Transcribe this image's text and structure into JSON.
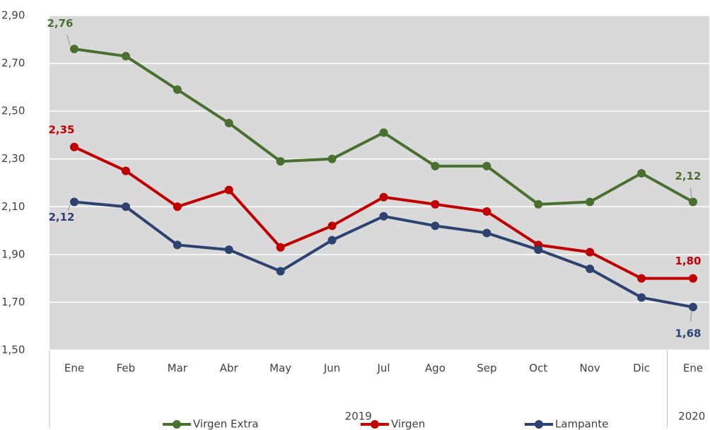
{
  "chart_data": {
    "type": "line",
    "categories": [
      "Ene",
      "Feb",
      "Mar",
      "Abr",
      "May",
      "Jun",
      "Jul",
      "Ago",
      "Sep",
      "Oct",
      "Nov",
      "Dic",
      "Ene"
    ],
    "x_groups": [
      {
        "label": "2019",
        "count": 12
      },
      {
        "label": "2020",
        "count": 1
      }
    ],
    "series": [
      {
        "name": "Virgen Extra",
        "color": "#4a7030",
        "values": [
          2.76,
          2.73,
          2.59,
          2.45,
          2.29,
          2.3,
          2.41,
          2.27,
          2.27,
          2.11,
          2.12,
          2.24,
          2.12
        ],
        "value_labels": [
          "2,76",
          null,
          null,
          null,
          null,
          null,
          null,
          null,
          null,
          null,
          null,
          null,
          "2,12"
        ]
      },
      {
        "name": "Virgen",
        "color": "#c00000",
        "values": [
          2.35,
          2.25,
          2.1,
          2.17,
          1.93,
          2.02,
          2.14,
          2.11,
          2.08,
          1.94,
          1.91,
          1.8,
          1.8
        ],
        "value_labels": [
          "2,35",
          null,
          null,
          null,
          null,
          null,
          null,
          null,
          null,
          null,
          null,
          null,
          "1,80"
        ]
      },
      {
        "name": "Lampante",
        "color": "#2e4272",
        "values": [
          2.12,
          2.1,
          1.94,
          1.92,
          1.83,
          1.96,
          2.06,
          2.02,
          1.99,
          1.92,
          1.84,
          1.72,
          1.68
        ],
        "value_labels": [
          "2,12",
          null,
          null,
          null,
          null,
          null,
          null,
          null,
          null,
          null,
          null,
          null,
          "1,68"
        ]
      }
    ],
    "ylim": [
      1.5,
      2.9
    ],
    "yticks": [
      {
        "value": 1.5,
        "label": "1,50"
      },
      {
        "value": 1.7,
        "label": "1,70"
      },
      {
        "value": 1.9,
        "label": "1,90"
      },
      {
        "value": 2.1,
        "label": "2,10"
      },
      {
        "value": 2.3,
        "label": "2,30"
      },
      {
        "value": 2.5,
        "label": "2,50"
      },
      {
        "value": 2.7,
        "label": "2,70"
      },
      {
        "value": 2.9,
        "label": "2,90"
      }
    ],
    "grid": true,
    "legend": "bottom"
  }
}
